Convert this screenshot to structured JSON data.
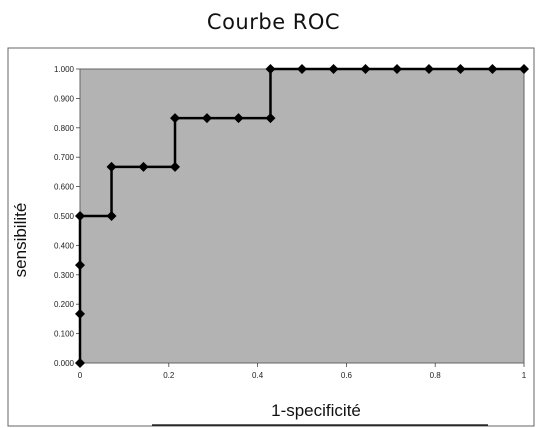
{
  "chart_data": {
    "type": "line",
    "title": "Courbe ROC",
    "xlabel": "1-specificité",
    "ylabel": "sensibilité",
    "xlim": [
      0,
      1
    ],
    "ylim": [
      0,
      1
    ],
    "x_ticks": [
      "0",
      "0.2",
      "0.4",
      "0.6",
      "0.8",
      "1"
    ],
    "y_ticks": [
      "0.000",
      "0.100",
      "0.200",
      "0.300",
      "0.400",
      "0.500",
      "0.600",
      "0.700",
      "0.800",
      "0.900",
      "1.000"
    ],
    "line_style": "step",
    "marker": "diamond",
    "grid": false,
    "colors": {
      "plot_background": "#b3b3b3",
      "line": "#000000"
    },
    "series": [
      {
        "points": [
          [
            0,
            0
          ],
          [
            0,
            0.167
          ],
          [
            0,
            0.333
          ],
          [
            0,
            0.5
          ],
          [
            0.071,
            0.5
          ],
          [
            0.071,
            0.667
          ],
          [
            0.143,
            0.667
          ],
          [
            0.214,
            0.667
          ],
          [
            0.214,
            0.833
          ],
          [
            0.286,
            0.833
          ],
          [
            0.357,
            0.833
          ],
          [
            0.429,
            0.833
          ],
          [
            0.429,
            1
          ],
          [
            0.5,
            1
          ],
          [
            0.571,
            1
          ],
          [
            0.643,
            1
          ],
          [
            0.714,
            1
          ],
          [
            0.786,
            1
          ],
          [
            0.857,
            1
          ],
          [
            0.929,
            1
          ],
          [
            1,
            1
          ]
        ]
      }
    ]
  }
}
